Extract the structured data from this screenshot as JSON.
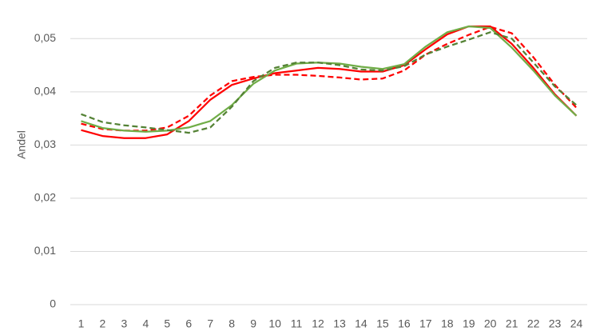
{
  "chart_data": {
    "type": "line",
    "y_label": "Andel",
    "categories": [
      1,
      2,
      3,
      4,
      5,
      6,
      7,
      8,
      9,
      10,
      11,
      12,
      13,
      14,
      15,
      16,
      17,
      18,
      19,
      20,
      21,
      22,
      23,
      24
    ],
    "series": [
      {
        "color": "#ff0000",
        "dashed": false,
        "values": [
          0.0328,
          0.0317,
          0.0313,
          0.0313,
          0.032,
          0.0345,
          0.0385,
          0.0413,
          0.0425,
          0.0435,
          0.044,
          0.0445,
          0.0443,
          0.0438,
          0.0438,
          0.045,
          0.048,
          0.0508,
          0.0523,
          0.0523,
          0.049,
          0.0445,
          0.0395,
          0.0355
        ]
      },
      {
        "color": "#ff0000",
        "dashed": true,
        "values": [
          0.034,
          0.033,
          0.0327,
          0.0327,
          0.0333,
          0.0355,
          0.0393,
          0.042,
          0.0428,
          0.0432,
          0.0432,
          0.043,
          0.0427,
          0.0423,
          0.0425,
          0.044,
          0.047,
          0.049,
          0.0507,
          0.0522,
          0.051,
          0.0465,
          0.0413,
          0.037
        ]
      },
      {
        "color": "#70ad47",
        "dashed": false,
        "values": [
          0.0345,
          0.0332,
          0.0327,
          0.0325,
          0.0327,
          0.0333,
          0.0345,
          0.0375,
          0.0415,
          0.044,
          0.0453,
          0.0455,
          0.0453,
          0.0447,
          0.0443,
          0.0452,
          0.0485,
          0.0512,
          0.0523,
          0.052,
          0.0483,
          0.044,
          0.0393,
          0.0355
        ]
      },
      {
        "color": "#548235",
        "dashed": true,
        "values": [
          0.0358,
          0.0343,
          0.0337,
          0.0333,
          0.0328,
          0.0323,
          0.0333,
          0.0372,
          0.042,
          0.0445,
          0.0455,
          0.0455,
          0.045,
          0.0442,
          0.044,
          0.0448,
          0.047,
          0.0485,
          0.0498,
          0.0512,
          0.05,
          0.0455,
          0.041,
          0.0375
        ]
      }
    ],
    "ylim": [
      0,
      0.055
    ],
    "yticks": [
      0,
      {
        "value": 0.01,
        "label": "0,01"
      },
      {
        "value": 0.02,
        "label": "0,02"
      },
      {
        "value": 0.03,
        "label": "0,03"
      },
      {
        "value": 0.04,
        "label": "0,04"
      },
      {
        "value": 0.05,
        "label": "0,05"
      }
    ],
    "grid": true
  }
}
